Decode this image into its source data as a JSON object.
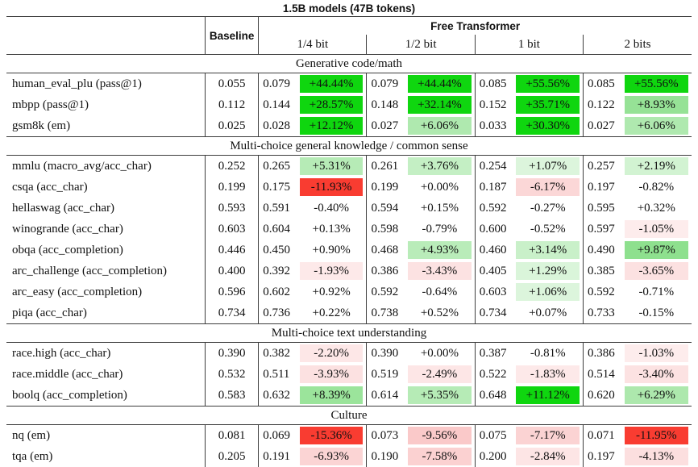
{
  "title": "1.5B models (47B tokens)",
  "header": {
    "baseline_label": "Baseline",
    "group_label": "Free Transformer",
    "bit_labels": [
      "1/4 bit",
      "1/2 bit",
      "1 bit",
      "2 bits"
    ]
  },
  "colors": {
    "strong_positive": "#0fd60f",
    "strong_negative": "#f93c31",
    "positive_tint_rgb": "0,185,0",
    "negative_tint_rgb": "238,70,70",
    "border": "#3d3d3d"
  },
  "sections": [
    {
      "label": "Generative code/math",
      "rows": [
        {
          "name": "human_eval_plu (pass@1)",
          "baseline": "0.055",
          "cells": [
            {
              "v": "0.079",
              "p": "+44.44%",
              "pct": 44.44
            },
            {
              "v": "0.079",
              "p": "+44.44%",
              "pct": 44.44
            },
            {
              "v": "0.085",
              "p": "+55.56%",
              "pct": 55.56
            },
            {
              "v": "0.085",
              "p": "+55.56%",
              "pct": 55.56
            }
          ]
        },
        {
          "name": "mbpp (pass@1)",
          "baseline": "0.112",
          "cells": [
            {
              "v": "0.144",
              "p": "+28.57%",
              "pct": 28.57
            },
            {
              "v": "0.148",
              "p": "+32.14%",
              "pct": 32.14
            },
            {
              "v": "0.152",
              "p": "+35.71%",
              "pct": 35.71
            },
            {
              "v": "0.122",
              "p": "+8.93%",
              "pct": 8.93
            }
          ]
        },
        {
          "name": "gsm8k (em)",
          "baseline": "0.025",
          "cells": [
            {
              "v": "0.028",
              "p": "+12.12%",
              "pct": 12.12
            },
            {
              "v": "0.027",
              "p": "+6.06%",
              "pct": 6.06
            },
            {
              "v": "0.033",
              "p": "+30.30%",
              "pct": 30.3
            },
            {
              "v": "0.027",
              "p": "+6.06%",
              "pct": 6.06
            }
          ]
        }
      ]
    },
    {
      "label": "Multi-choice general knowledge / common sense",
      "rows": [
        {
          "name": "mmlu (macro_avg/acc_char)",
          "baseline": "0.252",
          "cells": [
            {
              "v": "0.265",
              "p": "+5.31%",
              "pct": 5.31
            },
            {
              "v": "0.261",
              "p": "+3.76%",
              "pct": 3.76
            },
            {
              "v": "0.254",
              "p": "+1.07%",
              "pct": 1.07
            },
            {
              "v": "0.257",
              "p": "+2.19%",
              "pct": 2.19
            }
          ]
        },
        {
          "name": "csqa (acc_char)",
          "baseline": "0.199",
          "cells": [
            {
              "v": "0.175",
              "p": "-11.93%",
              "pct": -11.93
            },
            {
              "v": "0.199",
              "p": "+0.00%",
              "pct": 0.0
            },
            {
              "v": "0.187",
              "p": "-6.17%",
              "pct": -6.17
            },
            {
              "v": "0.197",
              "p": "-0.82%",
              "pct": -0.82
            }
          ]
        },
        {
          "name": "hellaswag (acc_char)",
          "baseline": "0.593",
          "cells": [
            {
              "v": "0.591",
              "p": "-0.40%",
              "pct": -0.4
            },
            {
              "v": "0.594",
              "p": "+0.15%",
              "pct": 0.15
            },
            {
              "v": "0.592",
              "p": "-0.27%",
              "pct": -0.27
            },
            {
              "v": "0.595",
              "p": "+0.32%",
              "pct": 0.32
            }
          ]
        },
        {
          "name": "winogrande (acc_char)",
          "baseline": "0.603",
          "cells": [
            {
              "v": "0.604",
              "p": "+0.13%",
              "pct": 0.13
            },
            {
              "v": "0.598",
              "p": "-0.79%",
              "pct": -0.79
            },
            {
              "v": "0.600",
              "p": "-0.52%",
              "pct": -0.52
            },
            {
              "v": "0.597",
              "p": "-1.05%",
              "pct": -1.05
            }
          ]
        },
        {
          "name": "obqa (acc_completion)",
          "baseline": "0.446",
          "cells": [
            {
              "v": "0.450",
              "p": "+0.90%",
              "pct": 0.9
            },
            {
              "v": "0.468",
              "p": "+4.93%",
              "pct": 4.93
            },
            {
              "v": "0.460",
              "p": "+3.14%",
              "pct": 3.14
            },
            {
              "v": "0.490",
              "p": "+9.87%",
              "pct": 9.87
            }
          ]
        },
        {
          "name": "arc_challenge (acc_completion)",
          "baseline": "0.400",
          "cells": [
            {
              "v": "0.392",
              "p": "-1.93%",
              "pct": -1.93
            },
            {
              "v": "0.386",
              "p": "-3.43%",
              "pct": -3.43
            },
            {
              "v": "0.405",
              "p": "+1.29%",
              "pct": 1.29
            },
            {
              "v": "0.385",
              "p": "-3.65%",
              "pct": -3.65
            }
          ]
        },
        {
          "name": "arc_easy (acc_completion)",
          "baseline": "0.596",
          "cells": [
            {
              "v": "0.602",
              "p": "+0.92%",
              "pct": 0.92
            },
            {
              "v": "0.592",
              "p": "-0.64%",
              "pct": -0.64
            },
            {
              "v": "0.603",
              "p": "+1.06%",
              "pct": 1.06
            },
            {
              "v": "0.592",
              "p": "-0.71%",
              "pct": -0.71
            }
          ]
        },
        {
          "name": "piqa (acc_char)",
          "baseline": "0.734",
          "cells": [
            {
              "v": "0.736",
              "p": "+0.22%",
              "pct": 0.22
            },
            {
              "v": "0.738",
              "p": "+0.52%",
              "pct": 0.52
            },
            {
              "v": "0.734",
              "p": "+0.07%",
              "pct": 0.07
            },
            {
              "v": "0.733",
              "p": "-0.15%",
              "pct": -0.15
            }
          ]
        }
      ]
    },
    {
      "label": "Multi-choice text understanding",
      "rows": [
        {
          "name": "race.high (acc_char)",
          "baseline": "0.390",
          "cells": [
            {
              "v": "0.382",
              "p": "-2.20%",
              "pct": -2.2
            },
            {
              "v": "0.390",
              "p": "+0.00%",
              "pct": 0.0
            },
            {
              "v": "0.387",
              "p": "-0.81%",
              "pct": -0.81
            },
            {
              "v": "0.386",
              "p": "-1.03%",
              "pct": -1.03
            }
          ]
        },
        {
          "name": "race.middle (acc_char)",
          "baseline": "0.532",
          "cells": [
            {
              "v": "0.511",
              "p": "-3.93%",
              "pct": -3.93
            },
            {
              "v": "0.519",
              "p": "-2.49%",
              "pct": -2.49
            },
            {
              "v": "0.522",
              "p": "-1.83%",
              "pct": -1.83
            },
            {
              "v": "0.514",
              "p": "-3.40%",
              "pct": -3.4
            }
          ]
        },
        {
          "name": "boolq (acc_completion)",
          "baseline": "0.583",
          "cells": [
            {
              "v": "0.632",
              "p": "+8.39%",
              "pct": 8.39
            },
            {
              "v": "0.614",
              "p": "+5.35%",
              "pct": 5.35
            },
            {
              "v": "0.648",
              "p": "+11.12%",
              "pct": 11.12
            },
            {
              "v": "0.620",
              "p": "+6.29%",
              "pct": 6.29
            }
          ]
        }
      ]
    },
    {
      "label": "Culture",
      "rows": [
        {
          "name": "nq (em)",
          "baseline": "0.081",
          "cells": [
            {
              "v": "0.069",
              "p": "-15.36%",
              "pct": -15.36
            },
            {
              "v": "0.073",
              "p": "-9.56%",
              "pct": -9.56
            },
            {
              "v": "0.075",
              "p": "-7.17%",
              "pct": -7.17
            },
            {
              "v": "0.071",
              "p": "-11.95%",
              "pct": -11.95
            }
          ]
        },
        {
          "name": "tqa (em)",
          "baseline": "0.205",
          "cells": [
            {
              "v": "0.191",
              "p": "-6.93%",
              "pct": -6.93
            },
            {
              "v": "0.190",
              "p": "-7.58%",
              "pct": -7.58
            },
            {
              "v": "0.200",
              "p": "-2.84%",
              "pct": -2.84
            },
            {
              "v": "0.197",
              "p": "-4.13%",
              "pct": -4.13
            }
          ]
        }
      ]
    }
  ]
}
